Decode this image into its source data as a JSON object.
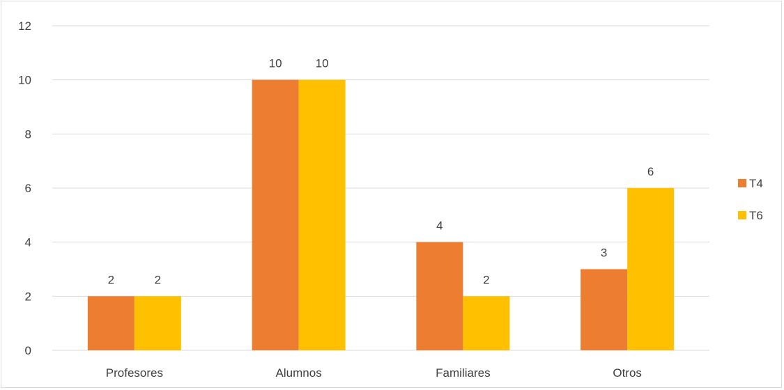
{
  "chart_data": {
    "type": "bar",
    "categories": [
      "Profesores",
      "Alumnos",
      "Familiares",
      "Otros"
    ],
    "series": [
      {
        "name": "T4",
        "values": [
          2,
          10,
          4,
          3
        ],
        "color": "#ED7D31"
      },
      {
        "name": "T6",
        "values": [
          2,
          10,
          2,
          6
        ],
        "color": "#FFC000"
      }
    ],
    "ylim": [
      0,
      12
    ],
    "yticks": [
      0,
      2,
      4,
      6,
      8,
      10,
      12
    ],
    "grid": true,
    "gridline_color": "#d9d9d9",
    "legend_position": "right",
    "data_labels": true,
    "title": "",
    "xlabel": "",
    "ylabel": ""
  }
}
